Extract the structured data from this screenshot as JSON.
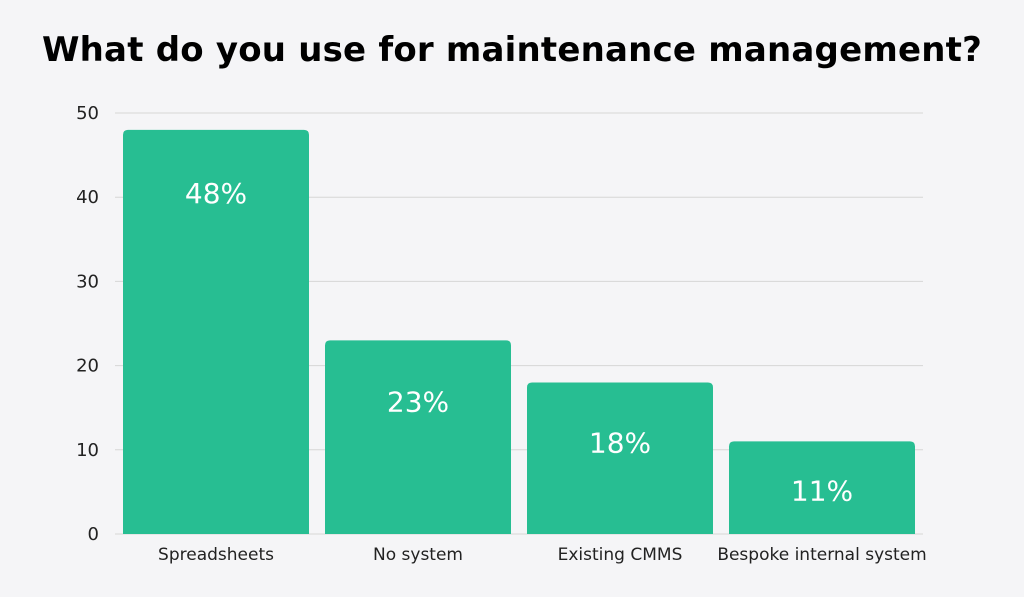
{
  "chart_data": {
    "type": "bar",
    "title": "What do you use for maintenance management?",
    "categories": [
      "Spreadsheets",
      "No system",
      "Existing CMMS",
      "Bespoke internal system"
    ],
    "values": [
      48,
      23,
      18,
      11
    ],
    "data_labels": [
      "48%",
      "23%",
      "18%",
      "11%"
    ],
    "xlabel": "",
    "ylabel": "",
    "ylim": [
      0,
      50
    ],
    "yticks": [
      0,
      10,
      20,
      30,
      40,
      50
    ],
    "grid": true,
    "legend": "none",
    "bar_color": "#27be92",
    "grid_color": "#d6d6d6",
    "background_color": "#f5f5f7"
  }
}
